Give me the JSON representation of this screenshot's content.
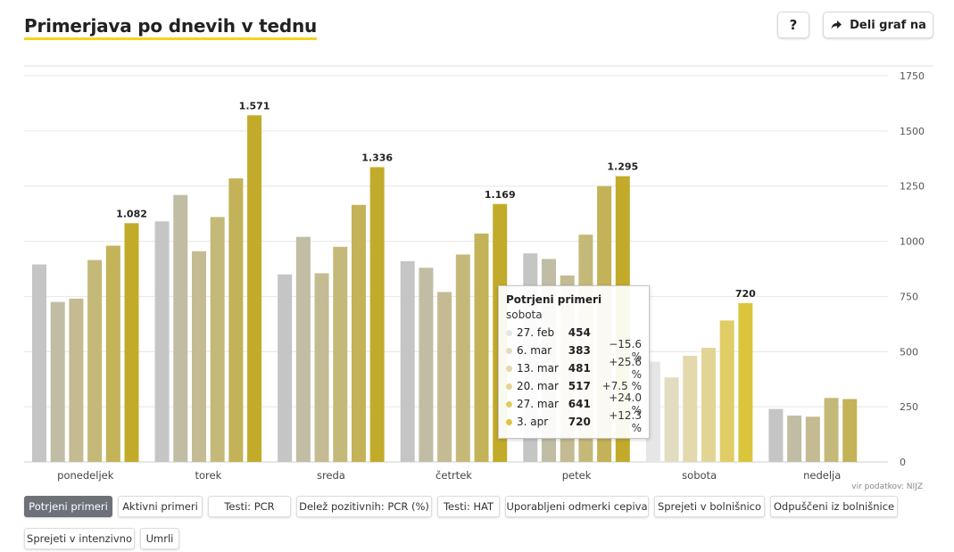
{
  "header": {
    "title": "Primerjava po dnevih v tednu",
    "help_label": "?",
    "share_label": "Deli graf na"
  },
  "source": "vir podatkov: NIJZ",
  "tabs": [
    {
      "label": "Potrjeni primeri",
      "active": true
    },
    {
      "label": "Aktivni primeri",
      "active": false
    },
    {
      "label": "Testi: PCR",
      "active": false
    },
    {
      "label": "Delež pozitivnih: PCR (%)",
      "active": false
    },
    {
      "label": "Testi: HAT",
      "active": false
    },
    {
      "label": "Uporabljeni odmerki cepiva",
      "active": false
    },
    {
      "label": "Sprejeti v bolnišnico",
      "active": false
    },
    {
      "label": "Odpuščeni iz bolnišnice",
      "active": false
    },
    {
      "label": "Sprejeti v intenzivno",
      "active": false
    },
    {
      "label": "Umrli",
      "active": false
    }
  ],
  "tooltip": {
    "title": "Potrjeni primeri",
    "subtitle": "sobota",
    "rows": [
      {
        "date": "27. feb",
        "value": "454",
        "change": ""
      },
      {
        "date": "6. mar",
        "value": "383",
        "change": "−15.6 %"
      },
      {
        "date": "13. mar",
        "value": "481",
        "change": "+25.6 %"
      },
      {
        "date": "20. mar",
        "value": "517",
        "change": "+7.5 %"
      },
      {
        "date": "27. mar",
        "value": "641",
        "change": "+24.0 %"
      },
      {
        "date": "3. apr",
        "value": "720",
        "change": "+12.3 %"
      }
    ]
  },
  "chart_data": {
    "type": "bar",
    "categories": [
      "ponedeljek",
      "torek",
      "sreda",
      "četrtek",
      "petek",
      "sobota",
      "nedelja"
    ],
    "series": [
      {
        "color": "#c5c5c5",
        "values": [
          895,
          1090,
          850,
          910,
          945,
          454,
          240
        ]
      },
      {
        "color": "#c1bda4",
        "values": [
          725,
          1210,
          1020,
          880,
          920,
          383,
          210
        ]
      },
      {
        "color": "#c4bb92",
        "values": [
          740,
          955,
          855,
          770,
          845,
          481,
          205
        ]
      },
      {
        "color": "#c5b97a",
        "values": [
          915,
          1110,
          975,
          940,
          1030,
          517,
          290
        ]
      },
      {
        "color": "#c3b257",
        "values": [
          980,
          1285,
          1165,
          1035,
          1250,
          641,
          285
        ]
      },
      {
        "color": "#c2ab2a",
        "values": [
          1082,
          1571,
          1336,
          1169,
          1295,
          720,
          null
        ]
      }
    ],
    "highlight_category": "sobota",
    "highlight_colors": [
      "#e6e6e6",
      "#e2dcc0",
      "#e3d9ac",
      "#e2d594",
      "#e0cd65",
      "#dbc53c"
    ],
    "data_labels": [
      "1.082",
      "1.571",
      "1.336",
      "1.169",
      "1.295",
      "720"
    ],
    "y_ticks": [
      0,
      250,
      500,
      750,
      1000,
      1250,
      1500,
      1750
    ],
    "ylim": [
      0,
      1750
    ],
    "grid": true
  }
}
